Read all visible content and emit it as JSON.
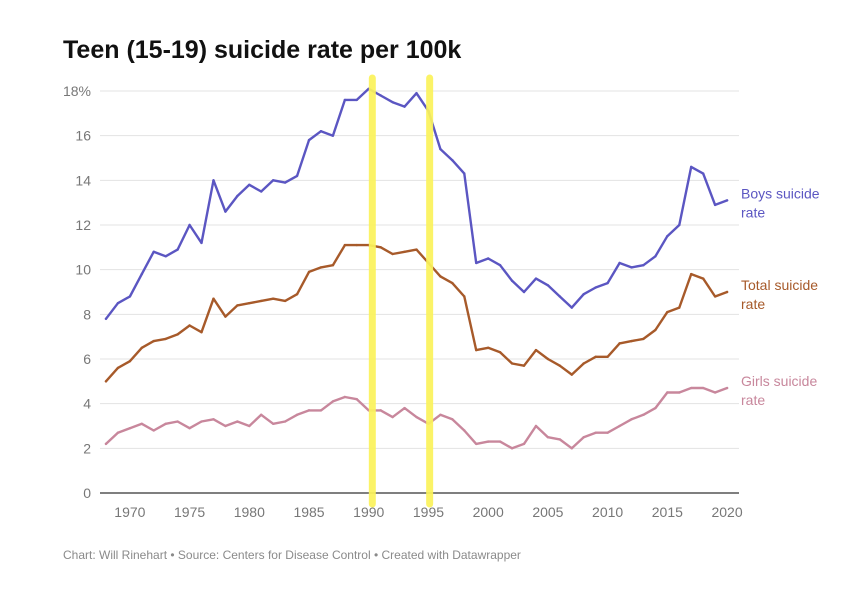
{
  "chart_data": {
    "type": "line",
    "title": "Teen (15-19) suicide rate per 100k",
    "source": "Chart: Will Rinehart • Source: Centers for Disease Control • Created with Datawrapper",
    "xlabel": "",
    "ylabel": "",
    "xlim": [
      1967.5,
      2021
    ],
    "ylim": [
      0,
      18
    ],
    "y_ticks": [
      0,
      2,
      4,
      6,
      8,
      10,
      12,
      14,
      16,
      18
    ],
    "y_tick_labels": [
      "0",
      "2",
      "4",
      "6",
      "8",
      "10",
      "12",
      "14",
      "16",
      "18%"
    ],
    "x_ticks": [
      1970,
      1975,
      1980,
      1985,
      1990,
      1995,
      2000,
      2005,
      2010,
      2015,
      2020
    ],
    "x_tick_labels": [
      "1970",
      "1975",
      "1980",
      "1985",
      "1990",
      "1995",
      "2000",
      "2005",
      "2010",
      "2015",
      "2020"
    ],
    "grid": true,
    "x": [
      1968,
      1969,
      1970,
      1971,
      1972,
      1973,
      1974,
      1975,
      1976,
      1977,
      1978,
      1979,
      1980,
      1981,
      1982,
      1983,
      1984,
      1985,
      1986,
      1987,
      1988,
      1989,
      1990,
      1991,
      1992,
      1993,
      1994,
      1995,
      1996,
      1997,
      1998,
      1999,
      2000,
      2001,
      2002,
      2003,
      2004,
      2005,
      2006,
      2007,
      2008,
      2009,
      2010,
      2011,
      2012,
      2013,
      2014,
      2015,
      2016,
      2017,
      2018,
      2019,
      2020
    ],
    "series": [
      {
        "name": "Boys suicide rate",
        "label_lines": [
          "Boys suicide",
          "rate"
        ],
        "color": "#5b56c2",
        "values": [
          7.8,
          8.5,
          8.8,
          9.8,
          10.8,
          10.6,
          10.9,
          12.0,
          11.2,
          14.0,
          12.6,
          13.3,
          13.8,
          13.5,
          14.0,
          13.9,
          14.2,
          15.8,
          16.2,
          16.0,
          17.6,
          17.6,
          18.1,
          17.8,
          17.5,
          17.3,
          17.9,
          17.1,
          15.4,
          14.9,
          14.3,
          10.3,
          10.5,
          10.2,
          9.5,
          9.0,
          9.6,
          9.3,
          8.8,
          8.3,
          8.9,
          9.2,
          9.4,
          10.3,
          10.1,
          10.2,
          10.6,
          11.5,
          12.0,
          14.6,
          14.3,
          12.9,
          13.1
        ]
      },
      {
        "name": "Total suicide rate",
        "label_lines": [
          "Total suicide",
          "rate"
        ],
        "color": "#a75a2a",
        "values": [
          5.0,
          5.6,
          5.9,
          6.5,
          6.8,
          6.9,
          7.1,
          7.5,
          7.2,
          8.7,
          7.9,
          8.4,
          8.5,
          8.6,
          8.7,
          8.6,
          8.9,
          9.9,
          10.1,
          10.2,
          11.1,
          11.1,
          11.1,
          11.0,
          10.7,
          10.8,
          10.9,
          10.3,
          9.7,
          9.4,
          8.8,
          6.4,
          6.5,
          6.3,
          5.8,
          5.7,
          6.4,
          6.0,
          5.7,
          5.3,
          5.8,
          6.1,
          6.1,
          6.7,
          6.8,
          6.9,
          7.3,
          8.1,
          8.3,
          9.8,
          9.6,
          8.8,
          9.0
        ]
      },
      {
        "name": "Girls suicide rate",
        "label_lines": [
          "Girls suicide",
          "rate"
        ],
        "color": "#c8879c",
        "values": [
          2.2,
          2.7,
          2.9,
          3.1,
          2.8,
          3.1,
          3.2,
          2.9,
          3.2,
          3.3,
          3.0,
          3.2,
          3.0,
          3.5,
          3.1,
          3.2,
          3.5,
          3.7,
          3.7,
          4.1,
          4.3,
          4.2,
          3.7,
          3.7,
          3.4,
          3.8,
          3.4,
          3.1,
          3.5,
          3.3,
          2.8,
          2.2,
          2.3,
          2.3,
          2.0,
          2.2,
          3.0,
          2.5,
          2.4,
          2.0,
          2.5,
          2.7,
          2.7,
          3.0,
          3.3,
          3.5,
          3.8,
          4.5,
          4.5,
          4.7,
          4.7,
          4.5,
          4.7
        ]
      }
    ],
    "annotations": [
      {
        "type": "vertical-highlight",
        "x": 1990.3,
        "color": "#fbf35b"
      },
      {
        "type": "vertical-highlight",
        "x": 1995.1,
        "color": "#fbf35b"
      }
    ]
  }
}
